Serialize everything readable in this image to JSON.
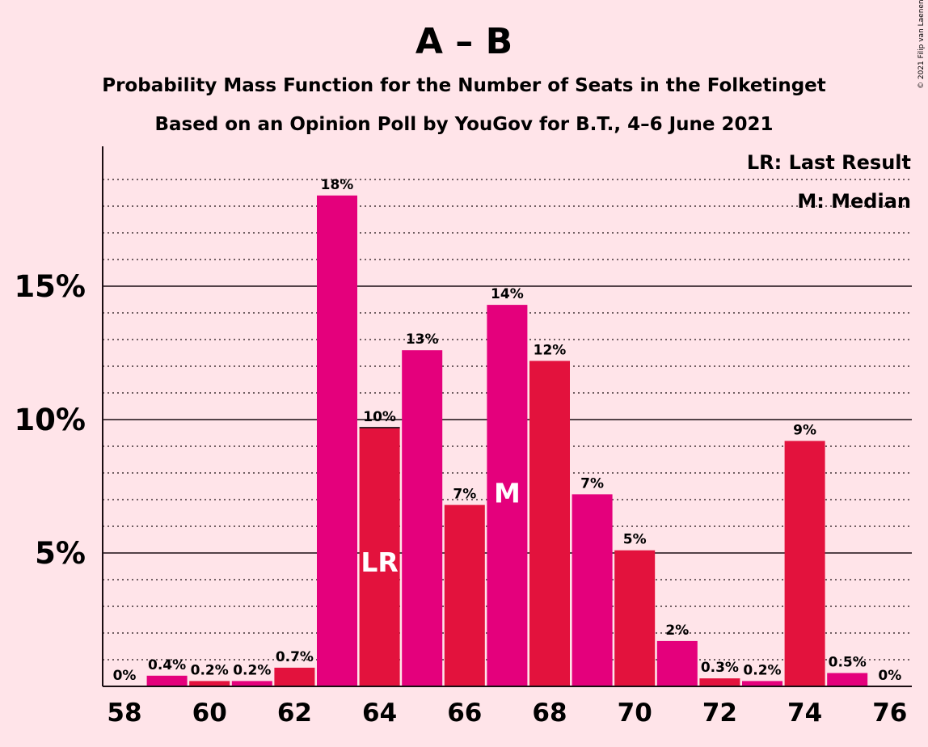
{
  "chart_data": {
    "type": "bar",
    "title": "A – B",
    "subtitle_1": "Probability Mass Function for the Number of Seats in the Folketinget",
    "subtitle_2": "Based on an Opinion Poll by YouGov for B.T., 4–6 June 2021",
    "copyright": "© 2021 Filip van Laenen",
    "legend": {
      "placement": "top-right",
      "lr": "LR: Last Result",
      "m": "M: Median"
    },
    "x": [
      58,
      59,
      60,
      61,
      62,
      63,
      64,
      65,
      66,
      67,
      68,
      69,
      70,
      71,
      72,
      73,
      74,
      75,
      76
    ],
    "values": [
      0,
      0.4,
      0.2,
      0.2,
      0.7,
      18.4,
      9.7,
      12.6,
      6.8,
      14.3,
      12.2,
      7.2,
      5.1,
      1.7,
      0.3,
      0.2,
      9.2,
      0.5,
      0
    ],
    "value_labels": [
      "0%",
      "0.4%",
      "0.2%",
      "0.2%",
      "0.7%",
      "18%",
      "10%",
      "13%",
      "7%",
      "14%",
      "12%",
      "7%",
      "5%",
      "2%",
      "0.3%",
      "0.2%",
      "9%",
      "0.5%",
      "0%"
    ],
    "x_ticks": [
      58,
      60,
      62,
      64,
      66,
      68,
      70,
      72,
      74,
      76
    ],
    "y_ticks": [
      {
        "value": 5,
        "label": "5%"
      },
      {
        "value": 10,
        "label": "10%"
      },
      {
        "value": 15,
        "label": "15%"
      }
    ],
    "ylim": [
      0,
      20
    ],
    "minor_grid_step": 1,
    "last_result_seat": 64,
    "last_result_marker": "LR",
    "median_seat": 67,
    "median_marker": "M",
    "colors": {
      "background": "#FFE4E9",
      "bar_a": "#E4007C",
      "bar_b": "#E3123D",
      "text": "#1a0d12",
      "marker_text": "#ffffff"
    }
  }
}
